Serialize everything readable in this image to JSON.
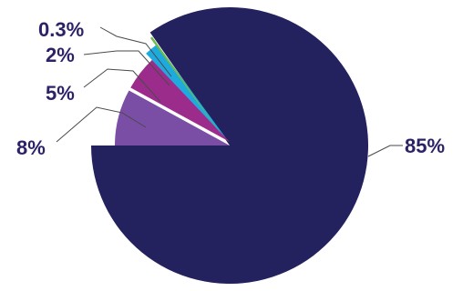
{
  "chart_data": {
    "type": "pie",
    "title": "",
    "slices": [
      {
        "value": 85,
        "label": "85%",
        "color": "#24225e"
      },
      {
        "value": 8,
        "label": "8%",
        "color": "#7b4ea6"
      },
      {
        "value": 5,
        "label": "5%",
        "color": "#9c2c8c"
      },
      {
        "value": 2,
        "label": "2%",
        "color": "#1ea9df"
      },
      {
        "value": 0.3,
        "label": "0.3%",
        "color": "#6dbd45"
      }
    ],
    "start_position": "9 o'clock",
    "direction": "counterclockwise",
    "exploded_slices": [
      "8%",
      "5%",
      "2%",
      "0.3%"
    ]
  }
}
